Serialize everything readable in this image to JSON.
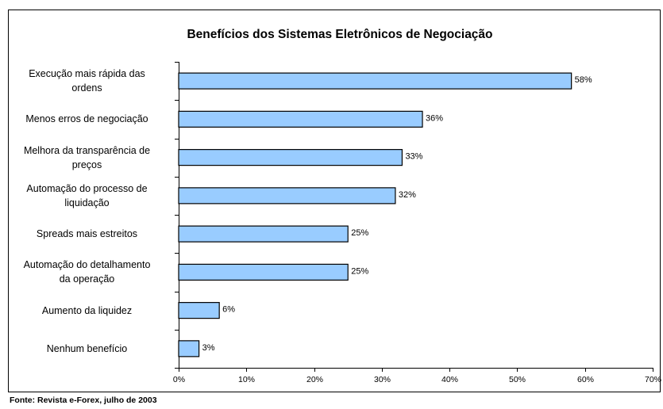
{
  "chart_data": {
    "type": "bar",
    "orientation": "horizontal",
    "title": "Benefícios dos Sistemas Eletrônicos de Negociação",
    "categories": [
      "Execução mais rápida das\nordens",
      "Menos erros de negociação",
      "Melhora da transparência de\npreços",
      "Automação do processo de\nliquidação",
      "Spreads mais estreitos",
      "Automação do detalhamento\nda operação",
      "Aumento da liquidez",
      "Nenhum benefício"
    ],
    "values": [
      58,
      36,
      33,
      32,
      25,
      25,
      6,
      3
    ],
    "value_labels": [
      "58%",
      "36%",
      "33%",
      "32%",
      "25%",
      "25%",
      "6%",
      "3%"
    ],
    "color": "#99ccff",
    "xlim": [
      0,
      70
    ],
    "xticks": [
      {
        "value": 0,
        "label": "0%"
      },
      {
        "value": 10,
        "label": "10%"
      },
      {
        "value": 20,
        "label": "20%"
      },
      {
        "value": 30,
        "label": "30%"
      },
      {
        "value": 40,
        "label": "40%"
      },
      {
        "value": 50,
        "label": "50%"
      },
      {
        "value": 60,
        "label": "60%"
      },
      {
        "value": 70,
        "label": "70%"
      }
    ],
    "grid": false,
    "source": "Fonte: Revista e-Forex, julho de 2003"
  }
}
